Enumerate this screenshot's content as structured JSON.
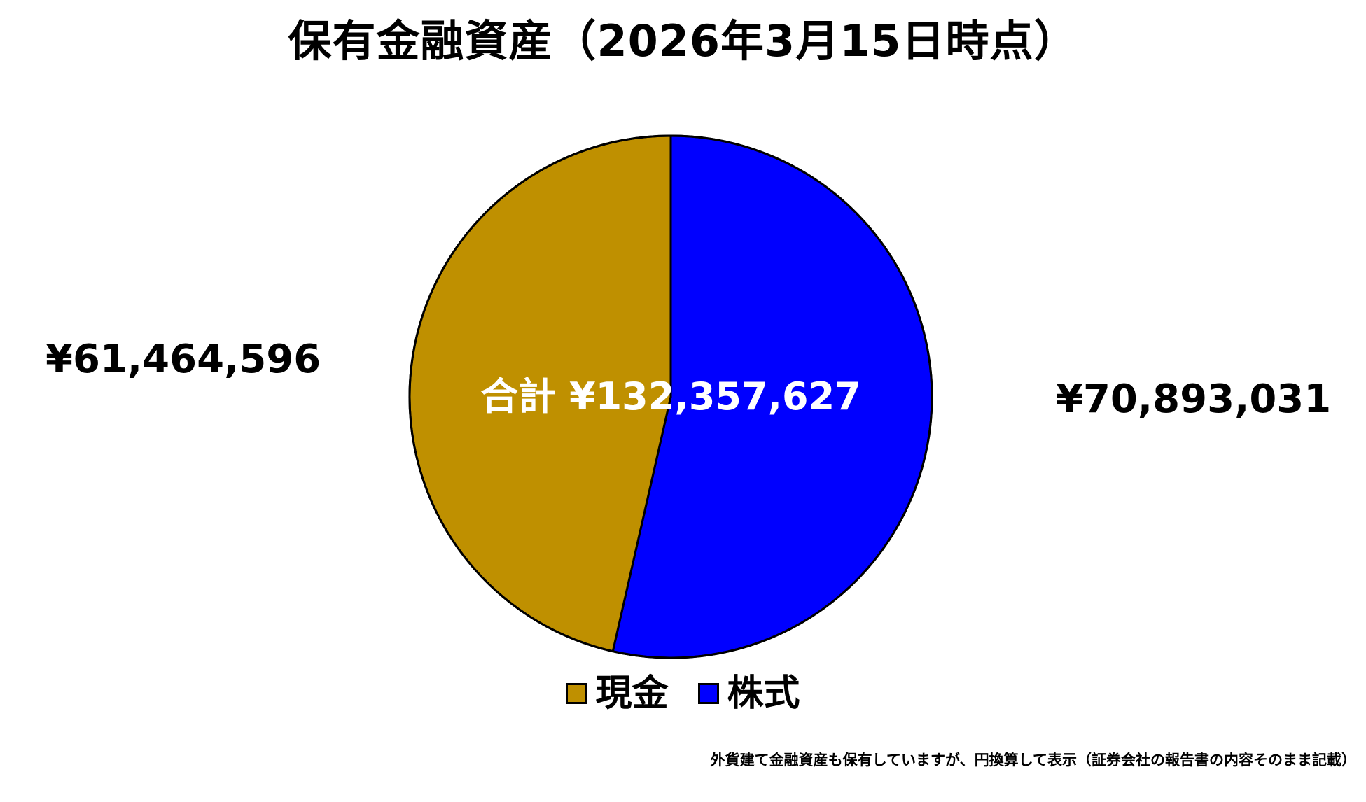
{
  "chart_data": {
    "type": "pie",
    "title": "保有金融資産（2026年3月15日時点）",
    "slices": [
      {
        "name": "現金",
        "value": 61464596,
        "label": "¥61,464,596",
        "color": "#BF9000"
      },
      {
        "name": "株式",
        "value": 70893031,
        "label": "¥70,893,031",
        "color": "#0000FF"
      }
    ],
    "total_label": "合計 ¥132,357,627",
    "legend_position": "bottom",
    "footnote": "外貨建て金融資産も保有していますが、円換算して表示（証券会社の報告書の内容そのまま記載）"
  }
}
